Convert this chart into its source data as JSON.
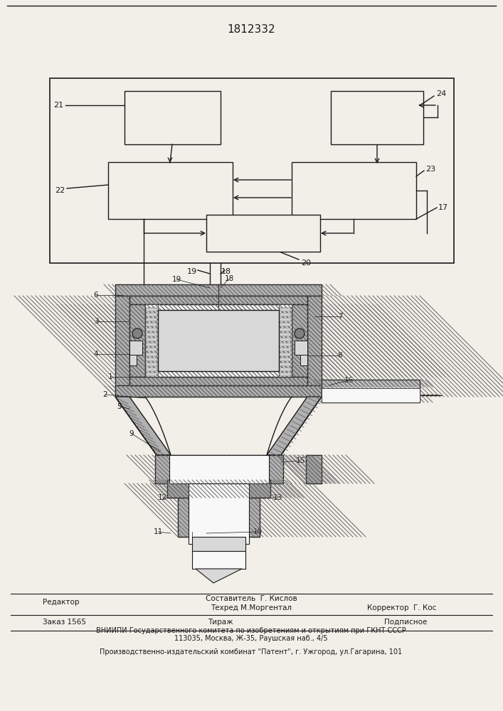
{
  "patent_number": "1812332",
  "bg": "#f2efe9",
  "lc": "#1a1a1a",
  "hatch_color": "#555555",
  "footer": {
    "editor_label": "Редактор",
    "compiler_label": "Составитель  Г. Кислов",
    "techred_label": "Техред М.Моргентал",
    "corrector_label": "Корректор  Г. Кос",
    "order_label": "Заказ 1565",
    "tirazh_label": "Тираж",
    "podpisnoe_label": "Подписное",
    "vniip_line": "ВНИИПИ Государственного комитета по изобретениям и открытиям при ГКНТ СССР",
    "address_line": "113035, Москва, Ж-35, Раушская наб., 4/5",
    "publisher_line": "Производственно-издательский комбинат \"Патент\", г. Ужгород, ул.Гагарина, 101"
  }
}
